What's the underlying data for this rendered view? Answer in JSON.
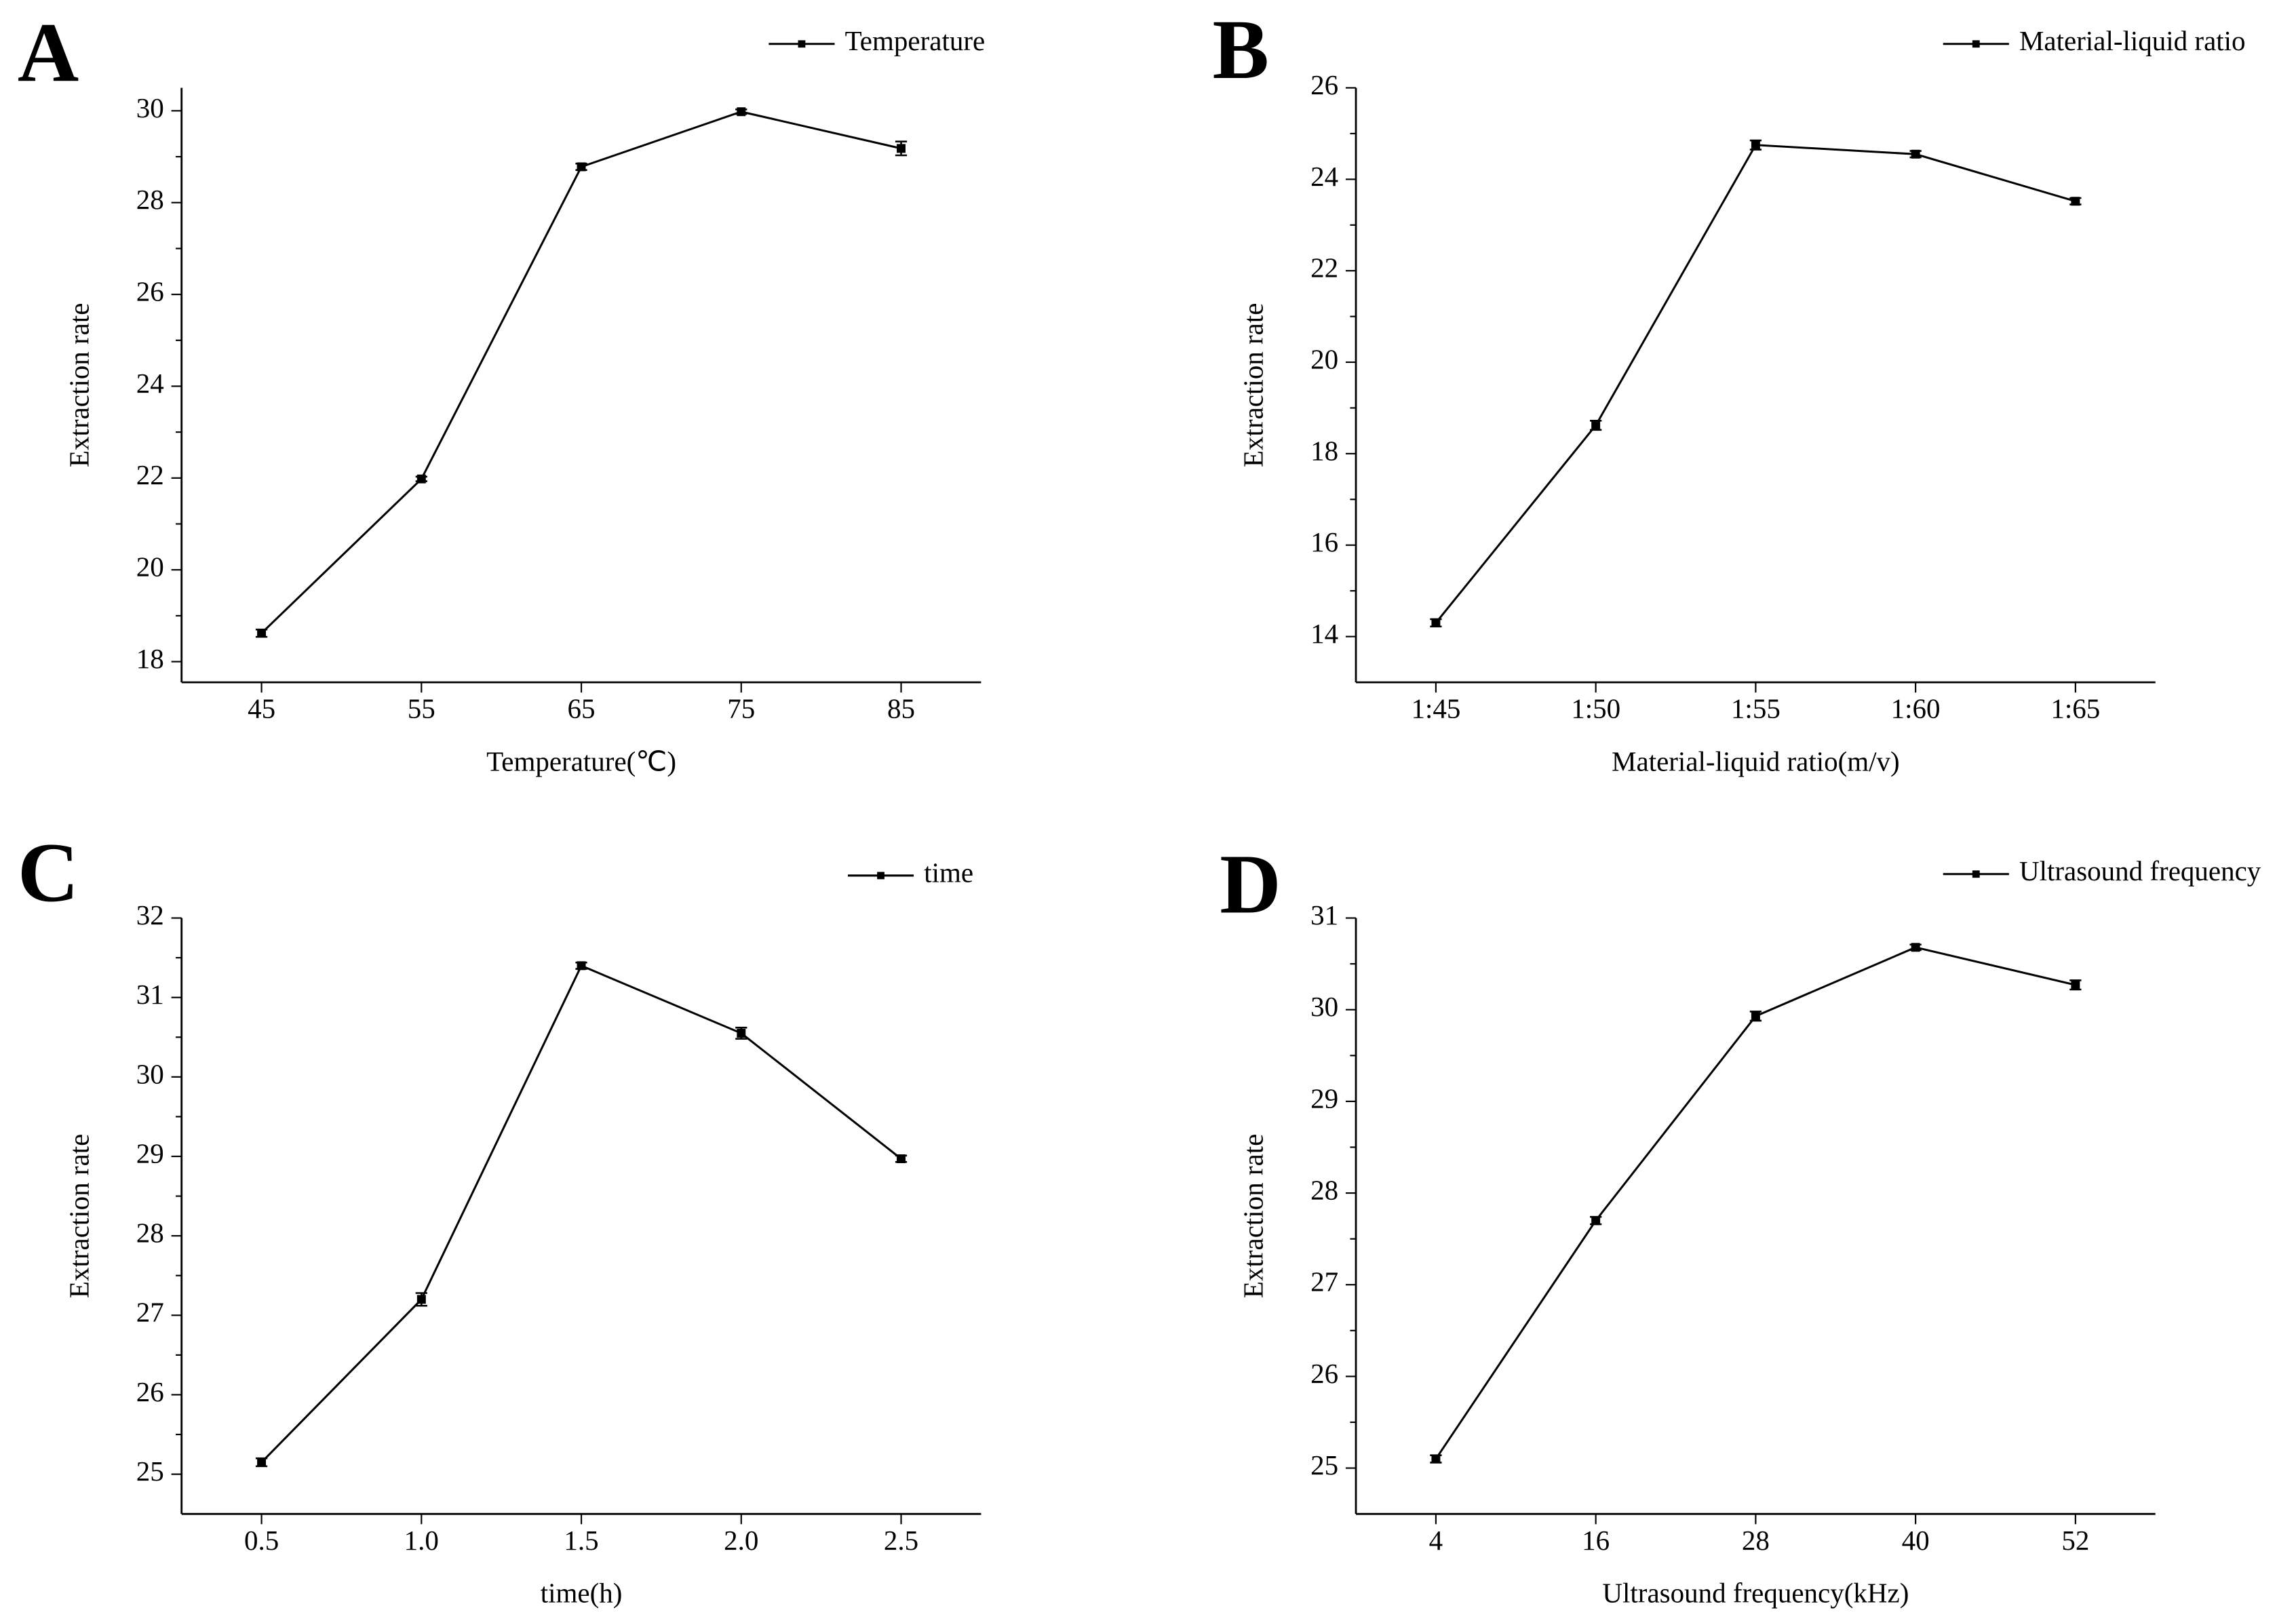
{
  "chart_data": [
    {
      "type": "line",
      "panel_label": "A",
      "x_label": "Temperature(℃)",
      "y_label": "Extraction rate",
      "x": [
        45,
        55,
        65,
        75,
        85
      ],
      "xlim": [
        40,
        90
      ],
      "xticks": [
        45,
        55,
        65,
        75,
        85
      ],
      "ylim": [
        17.55,
        30.5
      ],
      "yticks": [
        18,
        20,
        22,
        24,
        26,
        28,
        30
      ],
      "legend": "upper right",
      "series": [
        {
          "name": "Temperature",
          "color": "#000000",
          "values": [
            18.62,
            21.98,
            28.78,
            29.98,
            29.18
          ],
          "errors": [
            0.08,
            0.05,
            0.07,
            0.05,
            0.15
          ]
        }
      ]
    },
    {
      "type": "line",
      "panel_label": "B",
      "x_label": "Material-liquid ratio(m/v)",
      "y_label": "Extraction rate",
      "categories": [
        "1:45",
        "1:50",
        "1:55",
        "1:60",
        "1:65"
      ],
      "ylim": [
        13,
        26
      ],
      "yticks": [
        14,
        16,
        18,
        20,
        22,
        24,
        26
      ],
      "legend": "upper right",
      "series": [
        {
          "name": "Material-liquid ratio",
          "color": "#000000",
          "values": [
            14.3,
            18.62,
            24.75,
            24.55,
            23.52
          ],
          "errors": [
            0.08,
            0.1,
            0.1,
            0.07,
            0.07
          ]
        }
      ]
    },
    {
      "type": "line",
      "panel_label": "C",
      "x_label": "time(h)",
      "y_label": "Extraction rate",
      "x": [
        0.5,
        1,
        1.5,
        2,
        2.5
      ],
      "xlim": [
        0.25,
        2.75
      ],
      "xticks": [
        0.5,
        {
          "value": 1,
          "label": "1.0"
        },
        1.5,
        {
          "value": 2,
          "label": "2.0"
        },
        2.5
      ],
      "ylim": [
        24.5,
        32
      ],
      "yticks": [
        25,
        26,
        27,
        28,
        29,
        30,
        31,
        32
      ],
      "legend": "upper right",
      "series": [
        {
          "name": "time",
          "color": "#000000",
          "values": [
            25.15,
            27.2,
            31.4,
            30.55,
            28.97
          ],
          "errors": [
            0.05,
            0.08,
            0.04,
            0.07,
            0.04
          ]
        }
      ]
    },
    {
      "type": "line",
      "panel_label": "D",
      "x_label": "Ultrasound frequency(kHz)",
      "y_label": "Extraction rate",
      "x": [
        4,
        16,
        28,
        40,
        52
      ],
      "xlim": [
        -2,
        58
      ],
      "xticks": [
        4,
        16,
        28,
        40,
        52
      ],
      "ylim": [
        24.5,
        31
      ],
      "yticks": [
        25,
        26,
        27,
        28,
        29,
        30,
        31
      ],
      "legend": "upper right",
      "series": [
        {
          "name": "Ultrasound frequency",
          "color": "#000000",
          "values": [
            25.1,
            27.7,
            29.93,
            30.68,
            30.27
          ],
          "errors": [
            0.04,
            0.04,
            0.05,
            0.03,
            0.05
          ]
        }
      ]
    }
  ]
}
